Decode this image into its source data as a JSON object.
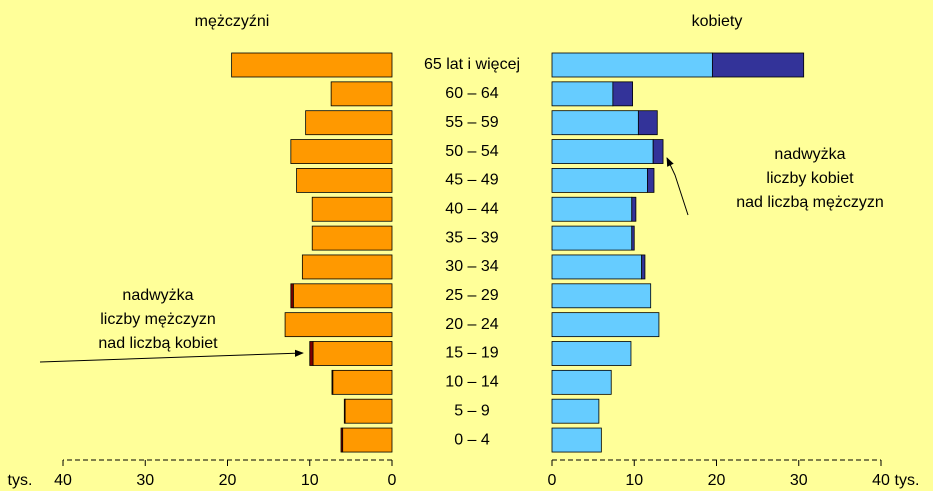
{
  "chart_data": {
    "type": "bar",
    "orientation": "horizontal",
    "categories": [
      "65 lat i więcej",
      "60 – 64",
      "55 – 59",
      "50 – 54",
      "45 – 49",
      "40 – 44",
      "35 – 39",
      "30 – 34",
      "25 – 29",
      "20 – 24",
      "15 – 19",
      "10 – 14",
      "5 – 9",
      "0 – 4"
    ],
    "xlim": [
      0,
      40
    ],
    "xticks": [
      0,
      10,
      20,
      30,
      40
    ],
    "xlabel": "tys.",
    "panels": [
      {
        "side": "left",
        "title": "mężczyźni",
        "series": [
          {
            "color": "#ff9900",
            "values": [
              19.5,
              7.4,
              10.5,
              12.3,
              11.6,
              9.7,
              9.7,
              10.9,
              12.0,
              13.0,
              9.6,
              7.2,
              5.7,
              6.0
            ]
          },
          {
            "color": "#800000",
            "values": [
              0,
              0,
              0,
              0,
              0,
              0,
              0,
              0,
              0.3,
              0,
              0.4,
              0.1,
              0.1,
              0.2
            ]
          }
        ],
        "annotation": [
          "nadwyżka",
          "liczby mężczyzn",
          "nad liczbą kobiet"
        ]
      },
      {
        "side": "right",
        "title": "kobiety",
        "series": [
          {
            "color": "#66ccff",
            "values": [
              19.5,
              7.4,
              10.5,
              12.3,
              11.6,
              9.7,
              9.7,
              10.9,
              12.0,
              13.0,
              9.6,
              7.2,
              5.7,
              6.0
            ]
          },
          {
            "color": "#333399",
            "values": [
              11.1,
              2.4,
              2.3,
              1.2,
              0.8,
              0.5,
              0.3,
              0.4,
              0,
              0,
              0,
              0,
              0,
              0
            ]
          }
        ],
        "annotation": [
          "nadwyżka",
          "liczby kobiet",
          "nad liczbą mężczyzn"
        ]
      }
    ]
  }
}
